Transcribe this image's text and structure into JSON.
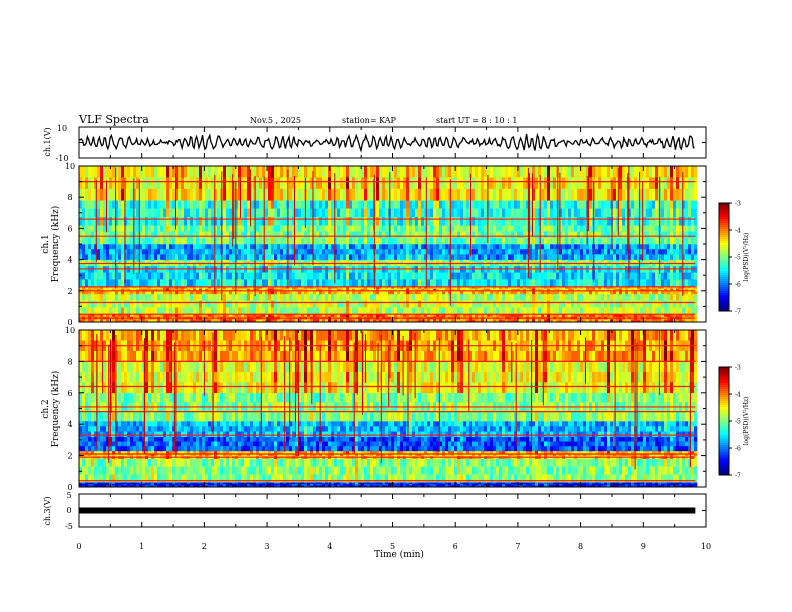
{
  "header": {
    "title": "VLF Spectra",
    "date": "Nov.5 , 2025",
    "station": "station= KAP",
    "start": "start UT = 8 : 10 : 1"
  },
  "chart_data": [
    {
      "type": "line",
      "name": "ch1-waveform",
      "ylabel": "ch.1(V)",
      "ylim": [
        -10,
        10
      ],
      "yticks": [
        "10",
        "-10"
      ],
      "xlim": [
        0,
        10
      ],
      "data_end_min": 9.83,
      "note": "noisy waveform oscillating roughly between -5 and +5 V"
    },
    {
      "type": "heatmap",
      "name": "ch1-spectrogram",
      "ylabel_top": "ch.1",
      "ylabel": "Frequency (kHz)",
      "ylim": [
        0,
        10
      ],
      "yticks": [
        "0",
        "2",
        "4",
        "6",
        "8",
        "10"
      ],
      "xlim": [
        0,
        10
      ],
      "colorbar": {
        "label": "log(PSD)(V²/Hz)",
        "ticks": [
          "-3",
          "-4",
          "-5",
          "-6",
          "-7"
        ],
        "range": [
          -7,
          -3
        ]
      },
      "bands_khz": [
        {
          "lo": 0.0,
          "hi": 0.5,
          "level": -4.0
        },
        {
          "lo": 0.5,
          "hi": 1.8,
          "level": -4.8
        },
        {
          "lo": 1.8,
          "hi": 2.3,
          "level": -4.3
        },
        {
          "lo": 2.3,
          "hi": 3.6,
          "level": -5.6
        },
        {
          "lo": 3.6,
          "hi": 4.0,
          "level": -5.0
        },
        {
          "lo": 4.0,
          "hi": 5.0,
          "level": -5.9
        },
        {
          "lo": 5.0,
          "hi": 6.2,
          "level": -5.1
        },
        {
          "lo": 6.2,
          "hi": 7.8,
          "level": -5.4
        },
        {
          "lo": 7.8,
          "hi": 10.0,
          "level": -4.5
        }
      ],
      "lines_khz": [
        0.25,
        0.5,
        1.25,
        2.0,
        2.25,
        3.4,
        3.75,
        5.5,
        6.6,
        9.0
      ]
    },
    {
      "type": "heatmap",
      "name": "ch2-spectrogram",
      "ylabel_top": "ch.2",
      "ylabel": "Frequency (kHz)",
      "ylim": [
        0,
        10
      ],
      "yticks": [
        "0",
        "2",
        "4",
        "6",
        "8",
        "10"
      ],
      "xlim": [
        0,
        10
      ],
      "colorbar": {
        "label": "log(PSD)(V²/Hz)",
        "ticks": [
          "-3",
          "-4",
          "-5",
          "-6",
          "-7"
        ],
        "range": [
          -7,
          -3
        ]
      },
      "bands_khz": [
        {
          "lo": 0.0,
          "hi": 0.3,
          "level": -6.5
        },
        {
          "lo": 0.3,
          "hi": 1.8,
          "level": -5.0
        },
        {
          "lo": 1.8,
          "hi": 2.3,
          "level": -4.3
        },
        {
          "lo": 2.3,
          "hi": 3.2,
          "level": -6.2
        },
        {
          "lo": 3.2,
          "hi": 4.2,
          "level": -5.8
        },
        {
          "lo": 4.2,
          "hi": 6.0,
          "level": -5.0
        },
        {
          "lo": 6.0,
          "hi": 8.0,
          "level": -4.6
        },
        {
          "lo": 8.0,
          "hi": 10.0,
          "level": -4.2
        }
      ],
      "lines_khz": [
        0.4,
        1.9,
        2.1,
        3.3,
        4.8,
        5.1,
        6.4,
        8.0,
        9.0
      ]
    },
    {
      "type": "line",
      "name": "ch3-trace",
      "ylabel": "ch.3(V)",
      "ylim": [
        -5,
        5
      ],
      "yticks": [
        "5",
        "0",
        "-5"
      ],
      "xlim": [
        0,
        10
      ],
      "data_end_min": 9.83,
      "level": 0,
      "xlabel": "Time (min)",
      "xticks": [
        "0",
        "1",
        "2",
        "3",
        "4",
        "5",
        "6",
        "7",
        "8",
        "9",
        "10"
      ]
    }
  ]
}
